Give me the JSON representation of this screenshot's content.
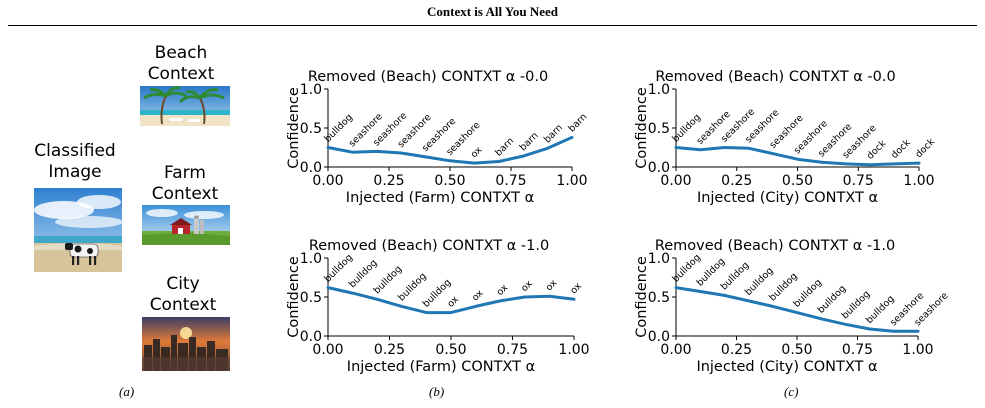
{
  "page": {
    "title": "Context is All You Need"
  },
  "panel_a": {
    "classified": {
      "line1": "Classified",
      "line2": "Image"
    },
    "contexts": [
      {
        "line1": "Beach",
        "line2": "Context"
      },
      {
        "line1": "Farm",
        "line2": "Context"
      },
      {
        "line1": "City",
        "line2": "Context"
      }
    ]
  },
  "captions": {
    "a": "(a)",
    "b": "(b)",
    "c": "(c)"
  },
  "colors": {
    "line": "#1f77b4"
  },
  "chart_data": [
    {
      "type": "line",
      "title": "Removed (Beach) CONTXT α -0.0",
      "xlabel": "Injected (Farm) CONTXT α",
      "ylabel": "Confidence",
      "xlim": [
        0,
        1
      ],
      "ylim": [
        0,
        1
      ],
      "xticks": [
        "0.00",
        "0.25",
        "0.50",
        "0.75",
        "1.00"
      ],
      "yticks": [
        "0.0",
        "0.5",
        "1.0"
      ],
      "x": [
        0.0,
        0.1,
        0.2,
        0.3,
        0.4,
        0.5,
        0.6,
        0.7,
        0.8,
        0.9,
        1.0
      ],
      "values": [
        0.25,
        0.19,
        0.2,
        0.18,
        0.13,
        0.08,
        0.05,
        0.07,
        0.14,
        0.24,
        0.38
      ],
      "labels": [
        "bulldog",
        "seashore",
        "seashore",
        "seashore",
        "seashore",
        "seashore",
        "ox",
        "barn",
        "barn",
        "barn",
        "barn"
      ]
    },
    {
      "type": "line",
      "title": "Removed (Beach) CONTXT α -0.0",
      "xlabel": "Injected (City) CONTXT α",
      "ylabel": "Confidence",
      "xlim": [
        0,
        1
      ],
      "ylim": [
        0,
        1
      ],
      "xticks": [
        "0.00",
        "0.25",
        "0.50",
        "0.75",
        "1.00"
      ],
      "yticks": [
        "0.0",
        "0.5",
        "1.0"
      ],
      "x": [
        0.0,
        0.1,
        0.2,
        0.3,
        0.4,
        0.5,
        0.6,
        0.7,
        0.8,
        0.9,
        1.0
      ],
      "values": [
        0.25,
        0.22,
        0.25,
        0.24,
        0.17,
        0.1,
        0.06,
        0.04,
        0.03,
        0.04,
        0.05
      ],
      "labels": [
        "bulldog",
        "seashore",
        "seashore",
        "seashore",
        "seashore",
        "seashore",
        "seashore",
        "seashore",
        "dock",
        "dock",
        "dock"
      ]
    },
    {
      "type": "line",
      "title": "Removed (Beach) CONTXT α -1.0",
      "xlabel": "Injected (Farm) CONTXT α",
      "ylabel": "Confidence",
      "xlim": [
        0,
        1
      ],
      "ylim": [
        0,
        1
      ],
      "xticks": [
        "0.00",
        "0.25",
        "0.50",
        "0.75",
        "1.00"
      ],
      "yticks": [
        "0.0",
        "0.5",
        "1.0"
      ],
      "x": [
        0.0,
        0.1,
        0.2,
        0.3,
        0.4,
        0.5,
        0.6,
        0.7,
        0.8,
        0.9,
        1.0
      ],
      "values": [
        0.62,
        0.55,
        0.47,
        0.38,
        0.3,
        0.3,
        0.38,
        0.45,
        0.5,
        0.51,
        0.47
      ],
      "labels": [
        "bulldog",
        "bulldog",
        "bulldog",
        "bulldog",
        "bulldog",
        "ox",
        "ox",
        "ox",
        "ox",
        "ox",
        "ox"
      ]
    },
    {
      "type": "line",
      "title": "Removed (Beach) CONTXT α -1.0",
      "xlabel": "Injected (City) CONTXT α",
      "ylabel": "Confidence",
      "xlim": [
        0,
        1
      ],
      "ylim": [
        0,
        1
      ],
      "xticks": [
        "0.00",
        "0.25",
        "0.50",
        "0.75",
        "1.00"
      ],
      "yticks": [
        "0.0",
        "0.5",
        "1.0"
      ],
      "x": [
        0.0,
        0.1,
        0.2,
        0.3,
        0.4,
        0.5,
        0.6,
        0.7,
        0.8,
        0.9,
        1.0
      ],
      "values": [
        0.62,
        0.57,
        0.52,
        0.45,
        0.38,
        0.3,
        0.22,
        0.15,
        0.09,
        0.06,
        0.06
      ],
      "labels": [
        "bulldog",
        "bulldog",
        "bulldog",
        "bulldog",
        "bulldog",
        "bulldog",
        "bulldog",
        "bulldog",
        "bulldog",
        "seashore",
        "seashore"
      ]
    }
  ]
}
